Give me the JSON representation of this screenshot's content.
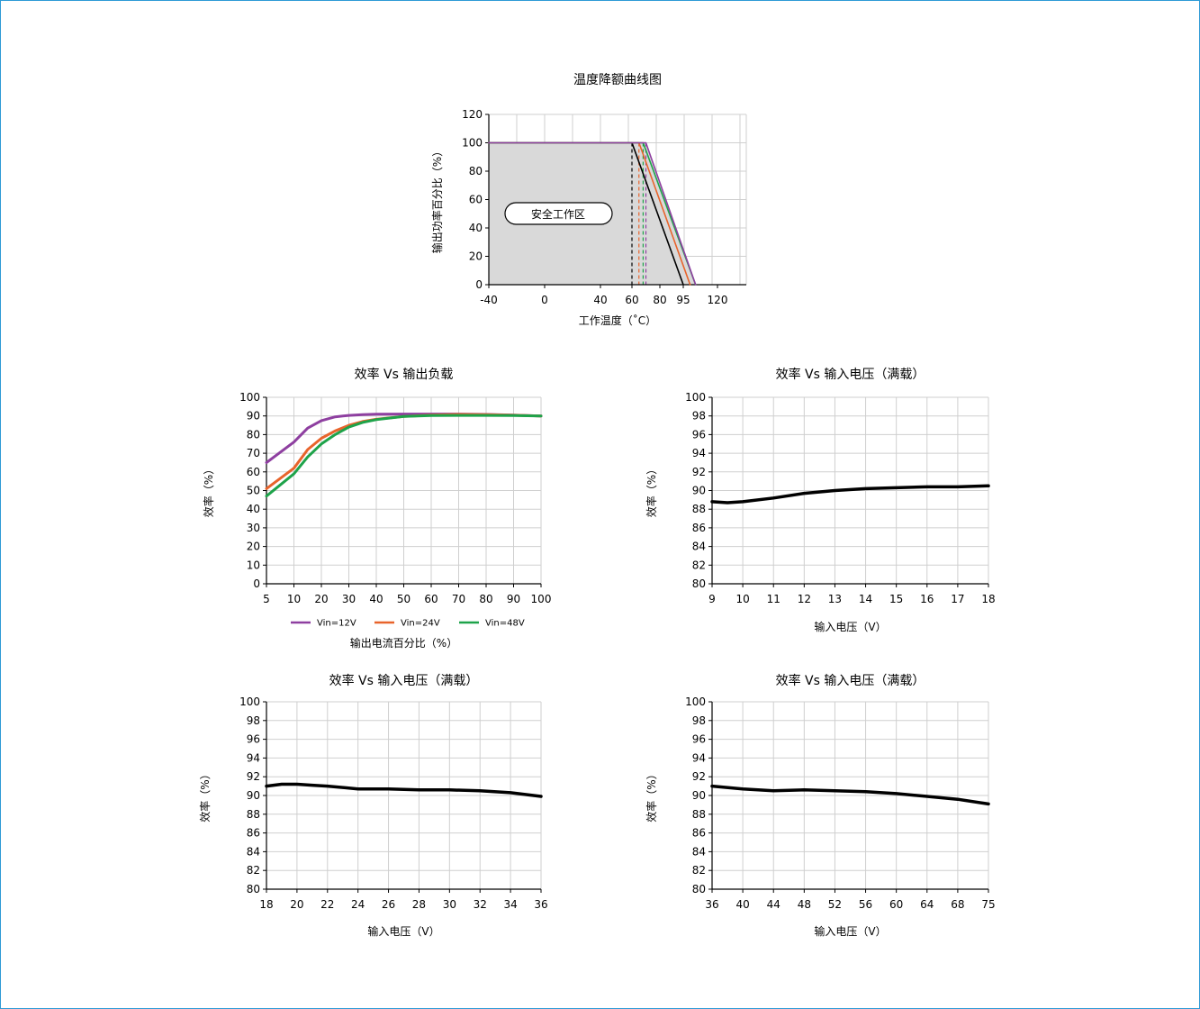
{
  "chart_data": [
    {
      "type": "line",
      "title": "温度降额曲线图",
      "xlabel": "工作温度（˚C）",
      "ylabel": "输出功率百分比（%）",
      "x_ticks": [
        "-40",
        "0",
        "40",
        "60",
        "80",
        "95",
        "120"
      ],
      "xlim": [
        -40,
        140
      ],
      "ylim": [
        0,
        120
      ],
      "y_ticks": [
        0,
        20,
        40,
        60,
        80,
        100,
        120
      ],
      "grid": true,
      "annotation": "安全工作区",
      "series": [
        {
          "color": "#000000",
          "x": [
            -40,
            60,
            95
          ],
          "y": [
            100,
            100,
            0
          ]
        },
        {
          "color": "#e8642c",
          "x": [
            -40,
            65,
            100
          ],
          "y": [
            100,
            100,
            0
          ]
        },
        {
          "color": "#1ea34a",
          "x": [
            -40,
            68,
            104
          ],
          "y": [
            100,
            100,
            0
          ]
        },
        {
          "color": "#8e3fa0",
          "x": [
            -40,
            70,
            104
          ],
          "y": [
            100,
            100,
            0
          ]
        }
      ],
      "dashed_markers": [
        {
          "x": 60,
          "color": "#000000"
        },
        {
          "x": 65,
          "color": "#e8642c"
        },
        {
          "x": 68,
          "color": "#1ea34a"
        },
        {
          "x": 70,
          "color": "#8e3fa0"
        }
      ]
    },
    {
      "type": "line",
      "title": "效率 Vs 输出负载",
      "xlabel": "输出电流百分比（%）",
      "ylabel": "效率（%）",
      "x_ticks": [
        5,
        10,
        20,
        30,
        40,
        50,
        60,
        70,
        80,
        90,
        100
      ],
      "xlim": [
        5,
        100
      ],
      "ylim": [
        0,
        100
      ],
      "y_ticks": [
        0,
        10,
        20,
        30,
        40,
        50,
        60,
        70,
        80,
        90,
        100
      ],
      "grid": true,
      "legend": "bottom",
      "series": [
        {
          "name": "Vin=12V",
          "color": "#8e3fa0",
          "x": [
            5,
            10,
            15,
            20,
            25,
            30,
            35,
            40,
            50,
            60,
            70,
            80,
            90,
            100
          ],
          "y": [
            65,
            76,
            83.5,
            87.5,
            89.5,
            90.3,
            90.7,
            90.9,
            91,
            91,
            91,
            90.8,
            90.5,
            90
          ]
        },
        {
          "name": "Vin=24V",
          "color": "#e8642c",
          "x": [
            5,
            10,
            15,
            20,
            25,
            30,
            35,
            40,
            50,
            60,
            70,
            80,
            90,
            100
          ],
          "y": [
            51,
            62,
            72,
            78,
            82,
            85,
            87,
            88.2,
            89.7,
            90.5,
            90.8,
            90.7,
            90.4,
            90
          ]
        },
        {
          "name": "Vin=48V",
          "color": "#1ea34a",
          "x": [
            5,
            10,
            15,
            20,
            25,
            30,
            35,
            40,
            50,
            60,
            70,
            80,
            90,
            100
          ],
          "y": [
            47,
            59,
            68,
            75,
            80,
            84,
            86.5,
            88,
            89.7,
            90.2,
            90.3,
            90.3,
            90.2,
            90
          ]
        }
      ]
    },
    {
      "type": "line",
      "title": "效率 Vs 输入电压（满载）",
      "xlabel": "输入电压（V）",
      "ylabel": "效率（%）",
      "x_ticks": [
        9,
        10,
        11,
        12,
        13,
        14,
        15,
        16,
        17,
        18
      ],
      "xlim": [
        9,
        18
      ],
      "ylim": [
        80,
        100
      ],
      "y_ticks": [
        80,
        82,
        84,
        86,
        88,
        90,
        92,
        94,
        96,
        98,
        100
      ],
      "grid": true,
      "series": [
        {
          "color": "#000000",
          "x": [
            9,
            9.5,
            10,
            11,
            12,
            13,
            14,
            15,
            16,
            17,
            18
          ],
          "y": [
            88.8,
            88.7,
            88.8,
            89.2,
            89.7,
            90,
            90.2,
            90.3,
            90.4,
            90.4,
            90.5
          ]
        }
      ]
    },
    {
      "type": "line",
      "title": "效率 Vs 输入电压（满载）",
      "xlabel": "输入电压（V）",
      "ylabel": "效率（%）",
      "x_ticks": [
        18,
        20,
        22,
        24,
        26,
        28,
        30,
        32,
        34,
        36
      ],
      "xlim": [
        18,
        36
      ],
      "ylim": [
        80,
        100
      ],
      "y_ticks": [
        80,
        82,
        84,
        86,
        88,
        90,
        92,
        94,
        96,
        98,
        100
      ],
      "grid": true,
      "series": [
        {
          "color": "#000000",
          "x": [
            18,
            19,
            20,
            21,
            22,
            24,
            26,
            28,
            30,
            32,
            34,
            36
          ],
          "y": [
            91,
            91.2,
            91.2,
            91.1,
            91,
            90.7,
            90.7,
            90.6,
            90.6,
            90.5,
            90.3,
            89.9
          ]
        }
      ]
    },
    {
      "type": "line",
      "title": "效率 Vs 输入电压（满载）",
      "xlabel": "输入电压（V）",
      "ylabel": "效率（%）",
      "x_ticks": [
        "36",
        "40",
        "44",
        "48",
        "52",
        "56",
        "60",
        "64",
        "68",
        "75"
      ],
      "xlim": [
        36,
        75
      ],
      "ylim": [
        80,
        100
      ],
      "y_ticks": [
        80,
        82,
        84,
        86,
        88,
        90,
        92,
        94,
        96,
        98,
        100
      ],
      "grid": true,
      "series": [
        {
          "color": "#000000",
          "x": [
            36,
            40,
            44,
            48,
            52,
            56,
            60,
            64,
            68,
            75
          ],
          "y": [
            91,
            90.7,
            90.5,
            90.6,
            90.5,
            90.4,
            90.2,
            89.9,
            89.6,
            89.1
          ]
        }
      ]
    }
  ]
}
